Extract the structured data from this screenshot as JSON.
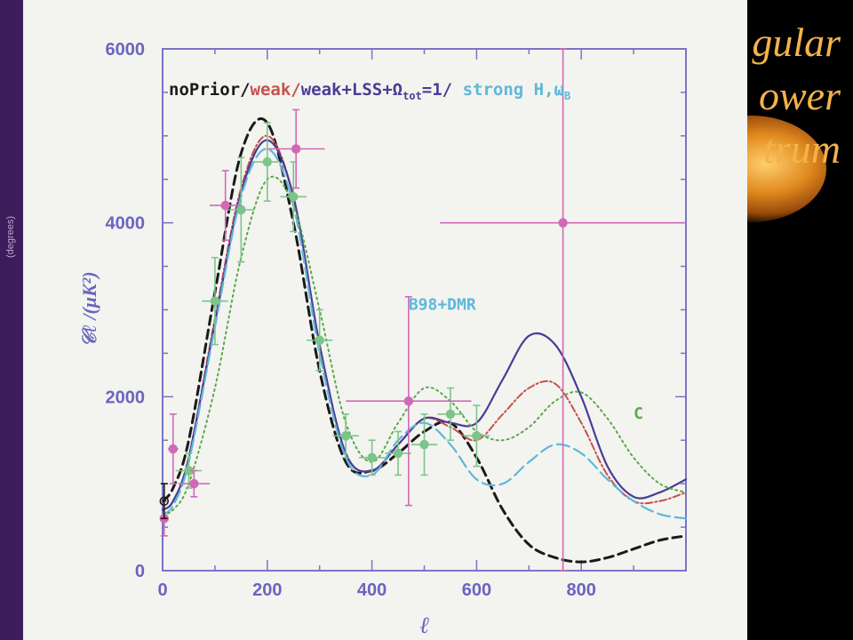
{
  "slide": {
    "title_lines": [
      "gular",
      "ower",
      "trum"
    ],
    "side_caption": "(degrees)",
    "colors": {
      "background": "#000000",
      "paper": "#f3f4ef",
      "title": "#f4b24a",
      "sidebar": "#3d1c5c"
    }
  },
  "chart_data": {
    "type": "line",
    "xlabel": "ℓ",
    "ylabel": "𝒞ℓ /(μK²)",
    "xlim": [
      0,
      1000
    ],
    "ylim": [
      0,
      6000
    ],
    "xticks": [
      0,
      200,
      400,
      600,
      800
    ],
    "yticks": [
      0,
      2000,
      4000,
      6000
    ],
    "legend": {
      "position": "top",
      "entries": [
        {
          "text": "noPrior/",
          "color": "#1a1a1a"
        },
        {
          "text": "weak/",
          "color": "#c8504e"
        },
        {
          "text": "weak+LSS+Ω",
          "color": "#4a3c96"
        },
        {
          "text": "tot",
          "color": "#4a3c96",
          "subscript": true
        },
        {
          "text": "=1/",
          "color": "#4a3c96"
        },
        {
          "text": " strong H,ω",
          "color": "#5fb7dc"
        },
        {
          "text": "B",
          "color": "#5fb7dc",
          "subscript": true
        }
      ]
    },
    "annotations": [
      {
        "text": "B98+DMR",
        "color": "#5fb7dc",
        "x": 470,
        "y": 3000
      },
      {
        "text": "C",
        "color": "#5aa84a",
        "x": 900,
        "y": 1750
      }
    ],
    "series": [
      {
        "id": "noPrior",
        "color": "#1a1a1a",
        "dash": "10,6",
        "width": 3,
        "x": [
          0,
          20,
          50,
          100,
          150,
          200,
          250,
          300,
          350,
          400,
          450,
          500,
          550,
          600,
          650,
          700,
          750,
          800,
          850,
          900,
          950,
          1000
        ],
        "y": [
          800,
          950,
          1500,
          3200,
          4800,
          5150,
          4000,
          2300,
          1250,
          1150,
          1350,
          1600,
          1700,
          1300,
          700,
          300,
          150,
          100,
          150,
          250,
          350,
          400
        ]
      },
      {
        "id": "weak",
        "color": "#c8504e",
        "dash": "8,3,2,3",
        "width": 2,
        "x": [
          0,
          20,
          50,
          100,
          150,
          200,
          250,
          300,
          350,
          400,
          450,
          500,
          550,
          600,
          650,
          700,
          750,
          800,
          850,
          900,
          950,
          1000
        ],
        "y": [
          700,
          800,
          1300,
          2900,
          4400,
          5000,
          4300,
          2600,
          1350,
          1150,
          1450,
          1750,
          1650,
          1500,
          1800,
          2100,
          2150,
          1700,
          1100,
          800,
          800,
          900
        ]
      },
      {
        "id": "weak_LSS_Omega",
        "color": "#4a3c96",
        "dash": "",
        "width": 2.2,
        "x": [
          0,
          20,
          50,
          100,
          150,
          200,
          250,
          300,
          350,
          400,
          450,
          500,
          550,
          600,
          650,
          700,
          750,
          800,
          850,
          900,
          950,
          1000
        ],
        "y": [
          700,
          800,
          1300,
          2850,
          4350,
          4950,
          4300,
          2600,
          1350,
          1150,
          1450,
          1750,
          1700,
          1700,
          2200,
          2700,
          2600,
          2000,
          1200,
          850,
          900,
          1050
        ]
      },
      {
        "id": "strong_H_omegaB",
        "color": "#5fb7dc",
        "dash": "14,6",
        "width": 2.2,
        "x": [
          0,
          20,
          50,
          100,
          150,
          200,
          250,
          300,
          350,
          400,
          450,
          500,
          550,
          600,
          650,
          700,
          750,
          800,
          850,
          900,
          950,
          1000
        ],
        "y": [
          650,
          750,
          1250,
          2800,
          4300,
          4850,
          4200,
          2500,
          1300,
          1100,
          1500,
          1700,
          1450,
          1050,
          1000,
          1250,
          1450,
          1350,
          1050,
          800,
          650,
          600
        ]
      },
      {
        "id": "C_model",
        "color": "#5aa84a",
        "dash": "2,4",
        "width": 2,
        "x": [
          0,
          20,
          50,
          100,
          150,
          200,
          250,
          300,
          350,
          400,
          450,
          500,
          550,
          600,
          650,
          700,
          750,
          800,
          850,
          900,
          950,
          1000
        ],
        "y": [
          650,
          700,
          1000,
          2100,
          3600,
          4500,
          4200,
          3000,
          1700,
          1250,
          1700,
          2100,
          1950,
          1600,
          1500,
          1650,
          1950,
          2050,
          1750,
          1300,
          1000,
          900
        ]
      }
    ],
    "data_points": [
      {
        "set": "B98",
        "color": "#7dc48a",
        "x": 50,
        "y": 1150,
        "xerr": 25,
        "yerr": 200
      },
      {
        "set": "B98",
        "color": "#7dc48a",
        "x": 100,
        "y": 3100,
        "xerr": 25,
        "yerr": 500
      },
      {
        "set": "B98",
        "color": "#7dc48a",
        "x": 150,
        "y": 4150,
        "xerr": 25,
        "yerr": 600
      },
      {
        "set": "B98",
        "color": "#7dc48a",
        "x": 200,
        "y": 4700,
        "xerr": 25,
        "yerr": 450
      },
      {
        "set": "B98",
        "color": "#7dc48a",
        "x": 250,
        "y": 4300,
        "xerr": 25,
        "yerr": 400
      },
      {
        "set": "B98",
        "color": "#7dc48a",
        "x": 300,
        "y": 2650,
        "xerr": 25,
        "yerr": 350
      },
      {
        "set": "B98",
        "color": "#7dc48a",
        "x": 350,
        "y": 1550,
        "xerr": 25,
        "yerr": 250
      },
      {
        "set": "B98",
        "color": "#7dc48a",
        "x": 400,
        "y": 1300,
        "xerr": 25,
        "yerr": 200
      },
      {
        "set": "B98",
        "color": "#7dc48a",
        "x": 450,
        "y": 1350,
        "xerr": 25,
        "yerr": 250
      },
      {
        "set": "B98",
        "color": "#7dc48a",
        "x": 500,
        "y": 1450,
        "xerr": 25,
        "yerr": 350
      },
      {
        "set": "B98",
        "color": "#7dc48a",
        "x": 550,
        "y": 1800,
        "xerr": 25,
        "yerr": 300
      },
      {
        "set": "B98",
        "color": "#7dc48a",
        "x": 600,
        "y": 1550,
        "xerr": 25,
        "yerr": 350
      },
      {
        "set": "DMR",
        "color": "#d169b6",
        "x": 3,
        "y": 600,
        "xerr": 2,
        "yerr": 200
      },
      {
        "set": "DMR",
        "color": "#d169b6",
        "x": 20,
        "y": 1400,
        "xerr": 10,
        "yerr": 400
      },
      {
        "set": "DMR",
        "color": "#d169b6",
        "x": 60,
        "y": 1000,
        "xerr": 30,
        "yerr": 150
      },
      {
        "set": "DMR",
        "color": "#d169b6",
        "x": 120,
        "y": 4200,
        "xerr": 30,
        "yerr": 400
      },
      {
        "set": "DMR",
        "color": "#d169b6",
        "x": 255,
        "y": 4850,
        "xerr": 55,
        "yerr": 450
      },
      {
        "set": "DMR",
        "color": "#d169b6",
        "x": 470,
        "y": 1950,
        "xerr": 120,
        "yerr": 1200
      },
      {
        "set": "DMR",
        "color": "#d169b6",
        "x": 765,
        "y": 4000,
        "xerr": 235,
        "yerr": 4000
      },
      {
        "set": "COBE",
        "color": "#1a1a1a",
        "x": 3,
        "y": 800,
        "xerr": 3,
        "yerr": 200,
        "open": true
      }
    ]
  }
}
